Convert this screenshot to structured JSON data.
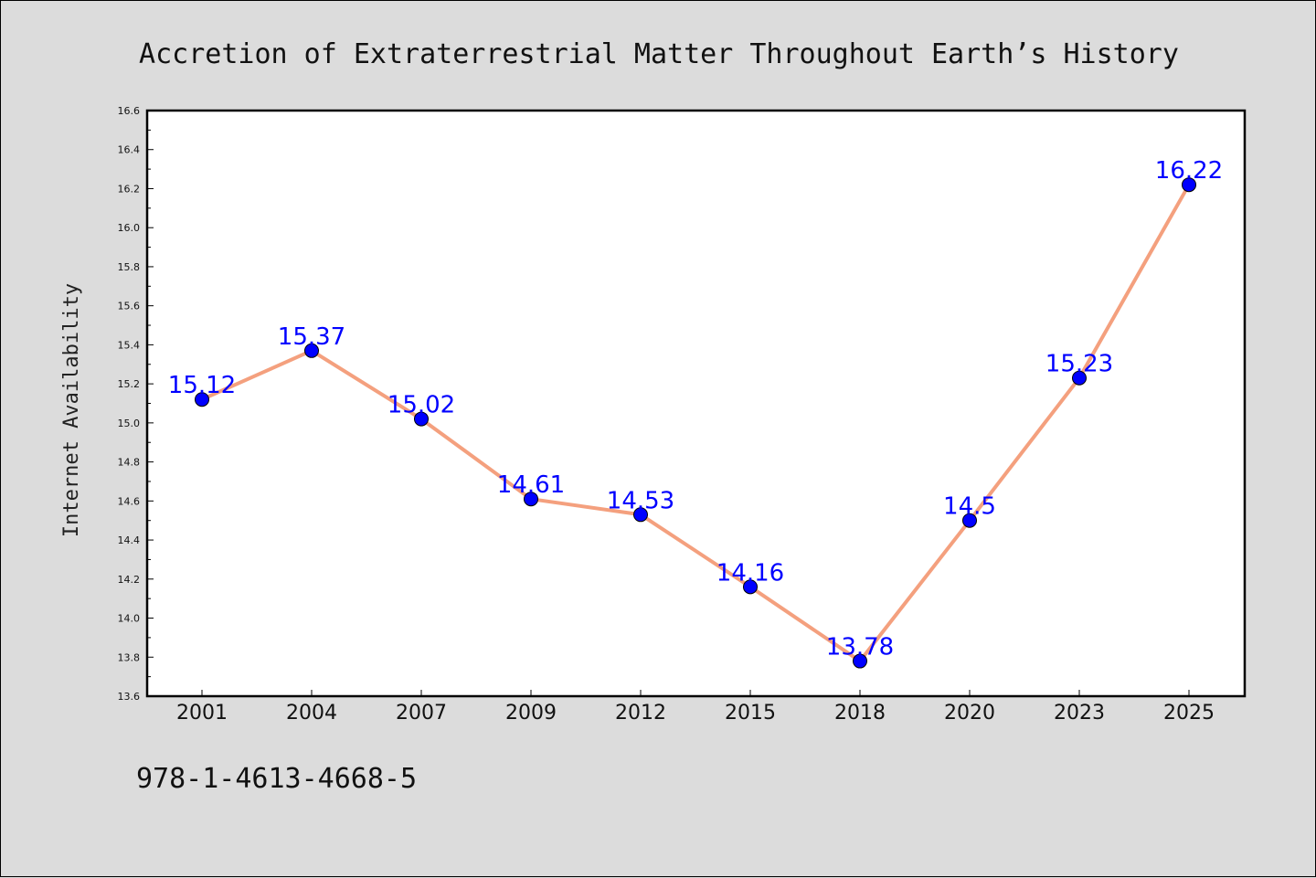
{
  "chart_data": {
    "type": "line",
    "title": "Accretion of Extraterrestrial Matter Throughout Earth’s History",
    "xlabel": "",
    "ylabel": "Internet Availability",
    "categories": [
      "2001",
      "2004",
      "2007",
      "2009",
      "2012",
      "2015",
      "2018",
      "2020",
      "2023",
      "2025"
    ],
    "values": [
      15.12,
      15.37,
      15.02,
      14.61,
      14.53,
      14.16,
      13.78,
      14.5,
      15.23,
      16.22
    ],
    "data_labels": [
      "15.12",
      "15.37",
      "15.02",
      "14.61",
      "14.53",
      "14.16",
      "13.78",
      "14.5",
      "15.23",
      "16.22"
    ],
    "ylim": [
      13.6,
      16.6
    ],
    "yticks": [
      "13.6",
      "13.8",
      "14.0",
      "14.2",
      "14.4",
      "14.6",
      "14.8",
      "15.0",
      "15.2",
      "15.4",
      "15.6",
      "15.8",
      "16.0",
      "16.2",
      "16.4",
      "16.6"
    ],
    "grid": false,
    "line_color": "#f4a07e",
    "marker_color": "#0000ff",
    "label_color": "#0000ff",
    "background": "#dcdcdc"
  },
  "footer_text": "978-1-4613-4668-5"
}
